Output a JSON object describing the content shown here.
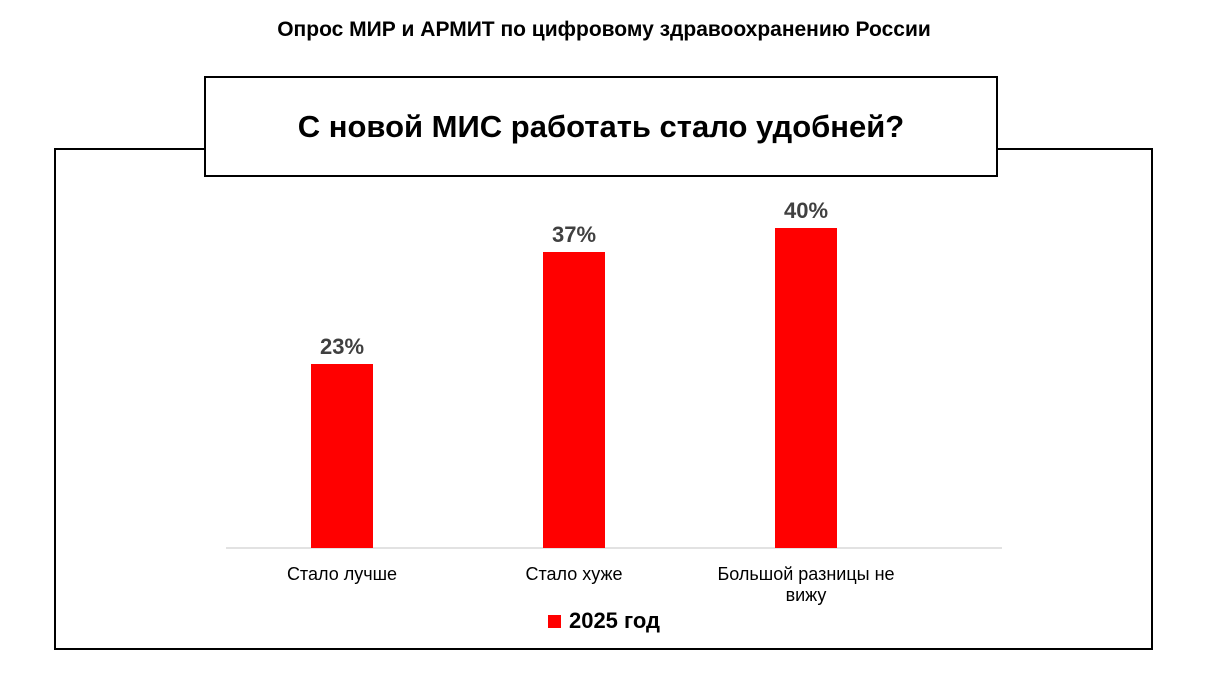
{
  "header": {
    "title": "Опрос МИР и АРМИТ по цифровому здравоохранению России"
  },
  "colors": {
    "bar": "#ff0000",
    "data_label": "#404040",
    "axis": "#d9d9d9"
  },
  "chart_data": {
    "type": "bar",
    "title": "С новой МИС работать стало удобней?",
    "categories": [
      "Стало лучше",
      "Стало хуже",
      "Большой разницы не вижу"
    ],
    "series": [
      {
        "name": "2025 год",
        "values": [
          23,
          37,
          40
        ]
      }
    ],
    "data_labels": [
      "23%",
      "37%",
      "40%"
    ],
    "unit": "%",
    "ylim": [
      0,
      45
    ],
    "grid": false,
    "legend": "bottom-center"
  }
}
